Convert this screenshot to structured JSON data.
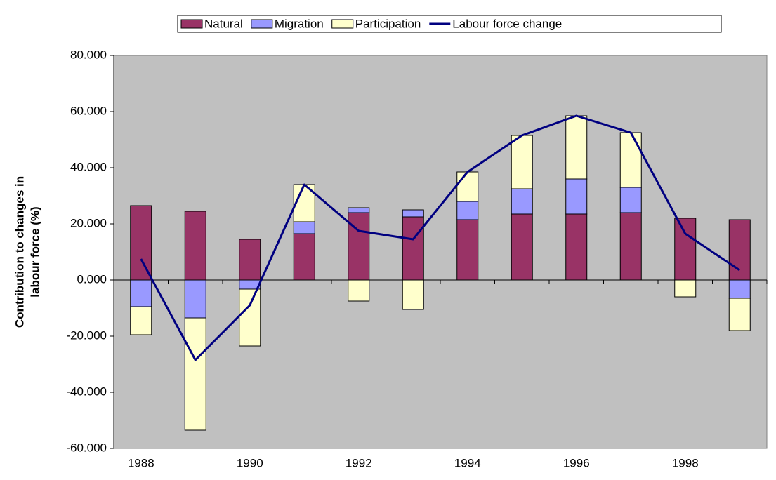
{
  "chart_data": {
    "type": "bar",
    "stacked": true,
    "y_label": [
      "Contribution to changes in",
      "labour force (%)"
    ],
    "categories": [
      "1988",
      null,
      "1990",
      null,
      "1992",
      null,
      "1994",
      null,
      "1996",
      null,
      "1998",
      null
    ],
    "series": [
      {
        "name": "Natural",
        "type": "bar",
        "color": "#993366",
        "values": [
          26.5,
          24.5,
          14.5,
          16.5,
          24,
          22.5,
          21.5,
          23.5,
          23.5,
          24,
          22,
          21.5
        ]
      },
      {
        "name": "Migration",
        "type": "bar",
        "color": "#9999ff",
        "values": [
          -9.5,
          -13.5,
          -3.25,
          4.25,
          1.75,
          2.5,
          6.5,
          9,
          12.5,
          9,
          0,
          -6.5
        ]
      },
      {
        "name": "Participation",
        "type": "bar",
        "color": "#ffffcc",
        "values": [
          -10,
          -40,
          -20.25,
          13.25,
          -7.5,
          -10.5,
          10.5,
          19,
          22.5,
          19.5,
          -6,
          -11.5
        ]
      },
      {
        "name": "Labour force change",
        "type": "line",
        "color": "#000080",
        "values": [
          7.5,
          -28.5,
          -9,
          34,
          17.5,
          14.5,
          38.5,
          51.5,
          58.5,
          52.5,
          16.5,
          3.5
        ]
      }
    ],
    "ylim": [
      -60,
      80
    ],
    "yticks": [
      {
        "value": -60,
        "label": "-60.000"
      },
      {
        "value": -40,
        "label": "-40.000"
      },
      {
        "value": -20,
        "label": "-20.000"
      },
      {
        "value": 0,
        "label": "0.000"
      },
      {
        "value": 20,
        "label": "20.000"
      },
      {
        "value": 40,
        "label": "40.000"
      },
      {
        "value": 60,
        "label": "60.000"
      },
      {
        "value": 80,
        "label": "80.000"
      }
    ],
    "plot_background": "#c0c0c0",
    "legend": "top"
  }
}
